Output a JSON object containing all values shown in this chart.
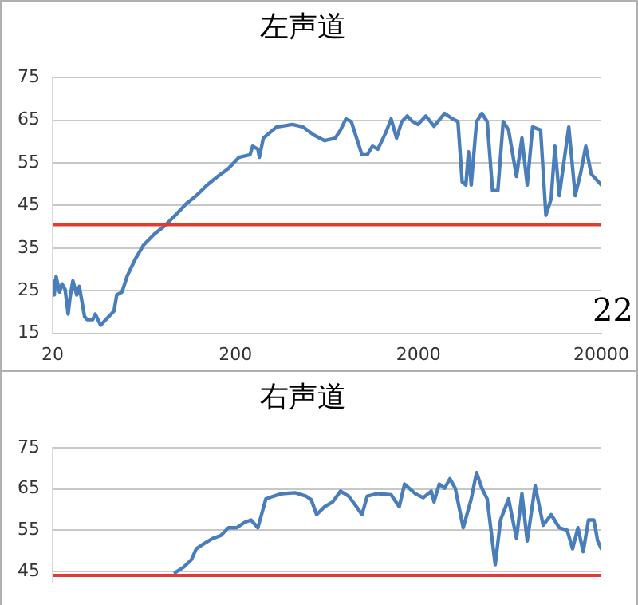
{
  "chart_data": [
    {
      "type": "line",
      "title": "左声道",
      "log": "x",
      "xlim": [
        20,
        20000
      ],
      "xticks": [
        20,
        200,
        2000,
        20000
      ],
      "ylim": [
        15,
        75
      ],
      "yticks": [
        15,
        25,
        35,
        45,
        55,
        65,
        75
      ],
      "grid": "y",
      "legend": false,
      "marker": "none",
      "line_style": "solid",
      "series": [
        {
          "color": "#4a7ebb",
          "x": [
            20,
            20.4,
            20.9,
            21.8,
            22.5,
            23.4,
            24.3,
            24.9,
            25.8,
            27.1,
            28,
            29.9,
            30.9,
            33.1,
            34.2,
            36.6,
            40.5,
            43.3,
            44.8,
            47.9,
            51.2,
            56.6,
            62.6,
            71.6,
            81.9,
            93.7,
            107,
            122,
            140,
            160,
            183,
            209,
            240,
            248,
            265,
            270,
            284,
            335,
            410,
            469,
            537,
            614,
            702,
            750,
            802,
            859,
            918,
            982,
            1050,
            1122,
            1200,
            1327,
            1419,
            1518,
            1623,
            1737,
            1857,
            1986,
            2198,
            2433,
            2781,
            3076,
            3289,
            3470,
            3634,
            3757,
            3888,
            4159,
            4447,
            4754,
            5084,
            5437,
            5817,
            6222,
            6873,
            7362,
            7870,
            8416,
            9309,
            9955,
            10640,
            11150,
            11780,
            12590,
            13280,
            14390,
            15380,
            16450,
            17600,
            20000
          ],
          "values": [
            27.3,
            24,
            28.3,
            24.7,
            26.6,
            25.3,
            19.5,
            23.4,
            27.3,
            24,
            26,
            18.9,
            18.2,
            18.2,
            19.5,
            16.9,
            18.9,
            20.2,
            24,
            24.7,
            28.5,
            32.4,
            35.6,
            38.2,
            40.2,
            42.7,
            45.3,
            47.3,
            49.8,
            51.8,
            53.7,
            56.3,
            56.9,
            58.9,
            58.2,
            56.3,
            60.8,
            63.4,
            64,
            63.4,
            61.5,
            60.2,
            60.8,
            62.7,
            65.3,
            64.7,
            60.8,
            56.9,
            56.9,
            58.9,
            58.2,
            62.1,
            65.3,
            60.8,
            64.7,
            66,
            64.7,
            64,
            66,
            63.6,
            66.6,
            65.3,
            64.7,
            50.5,
            49.8,
            57.6,
            49.8,
            64.7,
            66.6,
            64.7,
            48.5,
            48.5,
            64.7,
            62.7,
            51.8,
            60.8,
            49.8,
            63.4,
            62.7,
            42.7,
            46.6,
            58.9,
            47.3,
            56.3,
            63.4,
            47.3,
            52.4,
            58.9,
            52.4,
            49.8
          ]
        }
      ],
      "ref_lines": [
        {
          "axis": "y",
          "value": 40.5,
          "color": "#e03c31"
        }
      ],
      "annotations": [
        "22"
      ]
    },
    {
      "type": "line",
      "title": "右声道",
      "log": "x",
      "xlim": [
        20,
        20000
      ],
      "ylim": [
        42.5,
        75
      ],
      "yticks": [
        45,
        55,
        65,
        75
      ],
      "tick_labels": "y",
      "grid": "y",
      "legend": false,
      "marker": "none",
      "line_style": "solid",
      "series": [
        {
          "color": "#4a7ebb",
          "x": [
            93.7,
            104,
            115,
            122,
            135,
            150,
            166,
            183,
            203,
            224,
            243,
            265,
            293,
            324,
            359,
            424,
            485,
            519,
            555,
            614,
            680,
            750,
            830,
            918,
            982,
            1050,
            1200,
            1419,
            1571,
            1680,
            1921,
            2125,
            2350,
            2433,
            2601,
            2781,
            2974,
            3179,
            3516,
            3888,
            4159,
            4447,
            4754,
            5261,
            5623,
            6222,
            6873,
            7362,
            7870,
            8700,
            9619,
            10640,
            11780,
            13010,
            13930,
            14900,
            15920,
            17020,
            18200,
            19100,
            20000
          ],
          "values": [
            44.7,
            46,
            47.9,
            50.5,
            51.8,
            53,
            53.7,
            55.6,
            55.6,
            56.9,
            57.5,
            55.6,
            62.6,
            63.3,
            63.9,
            64.1,
            63.3,
            62.4,
            58.8,
            60.7,
            61.9,
            64.5,
            63.3,
            60.7,
            58.8,
            63.3,
            63.9,
            63.6,
            60.7,
            66.2,
            63.9,
            62.9,
            64.5,
            61.9,
            66.2,
            65.2,
            67.5,
            65.2,
            55.6,
            62.6,
            69,
            65.2,
            62.6,
            46.6,
            57.5,
            62.6,
            53,
            63.9,
            52.4,
            65.8,
            56.2,
            58.8,
            55.6,
            55,
            50.5,
            55.6,
            49.8,
            57.5,
            57.5,
            52.4,
            50.5
          ]
        }
      ],
      "ref_lines": [
        {
          "axis": "y",
          "value": 44,
          "color": "#e03c31"
        }
      ]
    }
  ]
}
